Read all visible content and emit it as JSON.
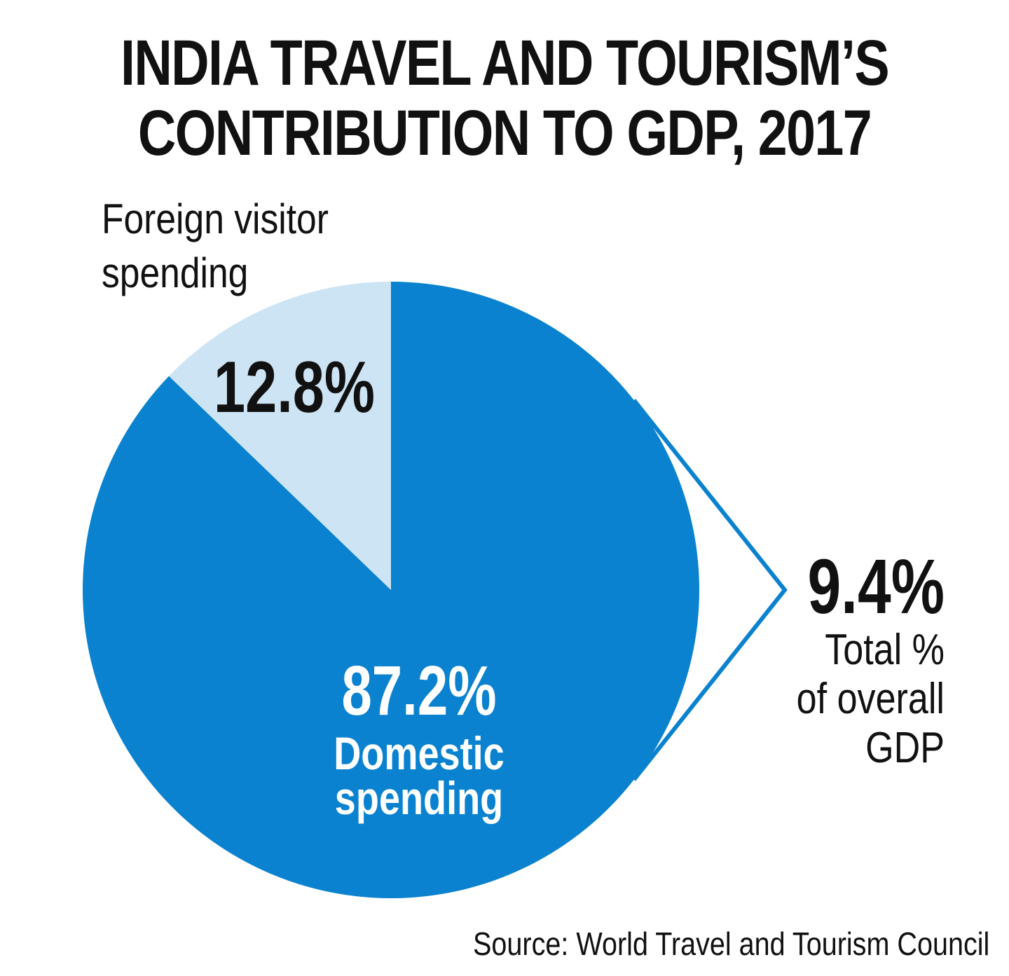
{
  "title_line1": "INDIA TRAVEL AND TOURISM’S",
  "title_line2": "CONTRIBUTION TO GDP, 2017",
  "source": "Source: World Travel and Tourism Council",
  "chart_data": {
    "type": "pie",
    "title": "INDIA TRAVEL AND TOURISM’S CONTRIBUTION TO GDP, 2017",
    "slices": [
      {
        "label_line1": "Domestic",
        "label_line2": "spending",
        "value": 87.2,
        "value_label": "87.2%",
        "color": "#0a82cf"
      },
      {
        "label_line1": "Foreign visitor",
        "label_line2": "spending",
        "value": 12.8,
        "value_label": "12.8%",
        "color": "#cde4f4"
      }
    ],
    "callout": {
      "value": 9.4,
      "value_label": "9.4%",
      "line1": "Total %",
      "line2": "of overall",
      "line3": "GDP",
      "color": "#0a82cf"
    }
  }
}
